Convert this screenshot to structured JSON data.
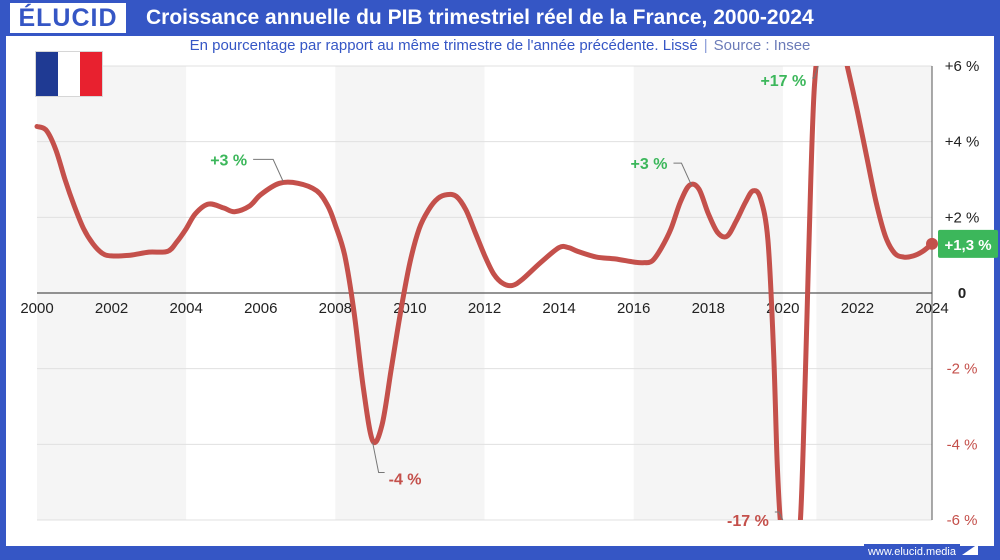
{
  "brand": "ÉLUCID",
  "title": "Croissance annuelle du PIB trimestriel réel de la France, 2000-2024",
  "subtitle": "En pourcentage par rapport au même trimestre de l'année précédente. Lissé",
  "subtitle_separator": "|",
  "source": "Source : Insee",
  "footer_url": "www.elucid.media",
  "flag_colors": [
    "#1f3a93",
    "#ffffff",
    "#e8212f"
  ],
  "colors": {
    "brand": "#3556c5",
    "line": "#c4504b",
    "positive": "#3cb75b",
    "negative": "#c4504b",
    "band": "#f5f5f5",
    "grid": "#e0e0e0"
  },
  "chart_data": {
    "type": "line",
    "title": "Croissance annuelle du PIB trimestriel réel de la France, 2000-2024",
    "xlabel": "",
    "ylabel": "",
    "xlim": [
      2000,
      2024
    ],
    "ylim": [
      -6,
      6
    ],
    "x_ticks": [
      2000,
      2002,
      2004,
      2006,
      2008,
      2010,
      2012,
      2014,
      2016,
      2018,
      2020,
      2022,
      2024
    ],
    "y_ticks": [
      {
        "value": 6,
        "label": "+6 %"
      },
      {
        "value": 4,
        "label": "+4 %"
      },
      {
        "value": 2,
        "label": "+2 %"
      },
      {
        "value": 0,
        "label": "0"
      },
      {
        "value": -2,
        "label": "-2 %"
      },
      {
        "value": -4,
        "label": "-4 %"
      },
      {
        "value": -6,
        "label": "-6 %"
      }
    ],
    "grid": true,
    "shaded_bands": [
      [
        2000,
        2004
      ],
      [
        2008,
        2012
      ],
      [
        2016,
        2020
      ],
      [
        2020.9,
        2024
      ]
    ],
    "series": [
      {
        "points": [
          [
            2000.0,
            4.4
          ],
          [
            2000.25,
            4.3
          ],
          [
            2000.5,
            3.8
          ],
          [
            2000.75,
            3.0
          ],
          [
            2001.0,
            2.3
          ],
          [
            2001.25,
            1.7
          ],
          [
            2001.5,
            1.3
          ],
          [
            2001.75,
            1.05
          ],
          [
            2002.0,
            0.98
          ],
          [
            2002.5,
            1.0
          ],
          [
            2003.0,
            1.08
          ],
          [
            2003.5,
            1.1
          ],
          [
            2003.75,
            1.35
          ],
          [
            2004.0,
            1.7
          ],
          [
            2004.25,
            2.1
          ],
          [
            2004.6,
            2.35
          ],
          [
            2005.0,
            2.25
          ],
          [
            2005.3,
            2.15
          ],
          [
            2005.7,
            2.3
          ],
          [
            2006.0,
            2.6
          ],
          [
            2006.5,
            2.9
          ],
          [
            2007.0,
            2.9
          ],
          [
            2007.5,
            2.7
          ],
          [
            2007.8,
            2.3
          ],
          [
            2008.0,
            1.8
          ],
          [
            2008.25,
            1.0
          ],
          [
            2008.5,
            -0.5
          ],
          [
            2008.75,
            -2.5
          ],
          [
            2009.0,
            -3.9
          ],
          [
            2009.25,
            -3.5
          ],
          [
            2009.5,
            -2.0
          ],
          [
            2009.75,
            -0.5
          ],
          [
            2010.0,
            0.8
          ],
          [
            2010.25,
            1.7
          ],
          [
            2010.5,
            2.2
          ],
          [
            2010.75,
            2.5
          ],
          [
            2011.0,
            2.6
          ],
          [
            2011.25,
            2.55
          ],
          [
            2011.5,
            2.2
          ],
          [
            2011.75,
            1.6
          ],
          [
            2012.0,
            1.0
          ],
          [
            2012.25,
            0.5
          ],
          [
            2012.5,
            0.25
          ],
          [
            2012.75,
            0.2
          ],
          [
            2013.0,
            0.35
          ],
          [
            2013.5,
            0.8
          ],
          [
            2014.0,
            1.2
          ],
          [
            2014.25,
            1.2
          ],
          [
            2014.5,
            1.1
          ],
          [
            2015.0,
            0.95
          ],
          [
            2015.5,
            0.9
          ],
          [
            2016.0,
            0.82
          ],
          [
            2016.25,
            0.8
          ],
          [
            2016.5,
            0.85
          ],
          [
            2016.75,
            1.2
          ],
          [
            2017.0,
            1.7
          ],
          [
            2017.25,
            2.4
          ],
          [
            2017.5,
            2.85
          ],
          [
            2017.75,
            2.75
          ],
          [
            2018.0,
            2.1
          ],
          [
            2018.25,
            1.6
          ],
          [
            2018.5,
            1.5
          ],
          [
            2018.75,
            1.9
          ],
          [
            2019.0,
            2.4
          ],
          [
            2019.2,
            2.7
          ],
          [
            2019.4,
            2.5
          ],
          [
            2019.6,
            1.4
          ],
          [
            2019.75,
            -1.5
          ],
          [
            2019.85,
            -4.5
          ],
          [
            2019.95,
            -6.2
          ],
          [
            2020.1,
            -6.5
          ],
          [
            2020.3,
            -6.4
          ],
          [
            2020.45,
            -6.3
          ],
          [
            2020.55,
            -4.0
          ],
          [
            2020.65,
            -0.5
          ],
          [
            2020.75,
            3.0
          ],
          [
            2020.85,
            5.5
          ],
          [
            2021.0,
            6.4
          ],
          [
            2021.5,
            6.5
          ],
          [
            2021.65,
            6.3
          ],
          [
            2021.75,
            5.9
          ],
          [
            2022.0,
            4.8
          ],
          [
            2022.25,
            3.6
          ],
          [
            2022.5,
            2.4
          ],
          [
            2022.75,
            1.5
          ],
          [
            2023.0,
            1.05
          ],
          [
            2023.25,
            0.95
          ],
          [
            2023.5,
            0.98
          ],
          [
            2023.75,
            1.1
          ],
          [
            2024.0,
            1.3
          ]
        ]
      }
    ],
    "annotations": [
      {
        "text": "+3 %",
        "x": 2006.6,
        "y": 2.95,
        "tone": "positive"
      },
      {
        "text": "-4 %",
        "x": 2009.0,
        "y": -3.95,
        "tone": "negative"
      },
      {
        "text": "+3 %",
        "x": 2017.55,
        "y": 2.85,
        "tone": "positive"
      },
      {
        "text": "-17 %",
        "x": 2020.0,
        "y": -6.0,
        "tone": "negative"
      },
      {
        "text": "+17 %",
        "x": 2020.95,
        "y": 6.0,
        "tone": "positive"
      }
    ],
    "last_value": {
      "text": "+1,3 %",
      "x": 2024,
      "y": 1.3
    }
  }
}
